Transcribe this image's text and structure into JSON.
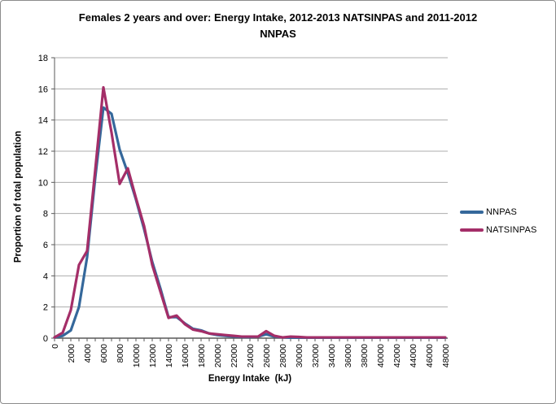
{
  "title": {
    "line1": "Females 2 years and over: Energy Intake, 2012-2013 NATSINPAS and 2011-2012",
    "line2": "NNPAS"
  },
  "colors": {
    "nnpas_line": "#35689B",
    "natsinpas_line": "#A42E68",
    "gridline": "#ACACAC",
    "axis_line": "#595959",
    "text": "#000000"
  },
  "legend": {
    "items": [
      {
        "label": "NNPAS",
        "color": "#35689B"
      },
      {
        "label": "NATSINPAS",
        "color": "#A42E68"
      }
    ]
  },
  "chart_data": {
    "type": "line",
    "title": "Females 2 years and over: Energy Intake, 2012-2013 NATSINPAS and 2011-2012 NNPAS",
    "xlabel": "Energy Intake  (kJ)",
    "ylabel": "Proportion of total population",
    "xlim": [
      0,
      48000
    ],
    "ylim": [
      0,
      18
    ],
    "grid": "horizontal",
    "legend_position": "right",
    "y_ticks": [
      0,
      2,
      4,
      6,
      8,
      10,
      12,
      14,
      16,
      18
    ],
    "x_tick_interval": 1000,
    "x_label_interval": 2000,
    "x_tick_labels": [
      "0",
      "2000",
      "4000",
      "6000",
      "8000",
      "10000",
      "12000",
      "14000",
      "16000",
      "18000",
      "20000",
      "22000",
      "24000",
      "26000",
      "28000",
      "30000",
      "32000",
      "34000",
      "36000",
      "38000",
      "40000",
      "42000",
      "44000",
      "46000",
      "48000"
    ],
    "x": [
      0,
      1000,
      2000,
      3000,
      4000,
      5000,
      6000,
      7000,
      8000,
      9000,
      10000,
      11000,
      12000,
      13000,
      14000,
      15000,
      16000,
      17000,
      18000,
      19000,
      20000,
      21000,
      22000,
      23000,
      24000,
      25000,
      26000,
      27000,
      28000,
      29000,
      30000,
      31000,
      32000,
      33000,
      34000,
      35000,
      36000,
      37000,
      38000,
      39000,
      40000,
      41000,
      42000,
      43000,
      44000,
      45000,
      46000,
      47000,
      48000
    ],
    "series": [
      {
        "name": "NNPAS",
        "color": "#35689B",
        "values": [
          0.05,
          0.15,
          0.5,
          2.0,
          5.2,
          10.3,
          14.8,
          14.4,
          12.1,
          10.6,
          8.9,
          7.0,
          4.9,
          3.2,
          1.35,
          1.35,
          0.95,
          0.6,
          0.5,
          0.3,
          0.2,
          0.15,
          0.1,
          0.08,
          0.07,
          0.1,
          0.25,
          0.1,
          0.05,
          0.03,
          0.03,
          0.03,
          0.03,
          0.03,
          0.03,
          0.03,
          0.03,
          0.03,
          0.03,
          0.03,
          0.03,
          0.03,
          0.03,
          0.03,
          0.03,
          0.03,
          0.03,
          0.03,
          0.03
        ]
      },
      {
        "name": "NATSINPAS",
        "color": "#A42E68",
        "values": [
          0.05,
          0.35,
          1.8,
          4.7,
          5.6,
          10.8,
          16.1,
          13.2,
          9.9,
          10.9,
          9.0,
          7.2,
          4.7,
          3.0,
          1.3,
          1.45,
          0.9,
          0.55,
          0.45,
          0.3,
          0.25,
          0.2,
          0.15,
          0.1,
          0.1,
          0.1,
          0.45,
          0.15,
          0.05,
          0.1,
          0.08,
          0.05,
          0.05,
          0.05,
          0.05,
          0.05,
          0.05,
          0.05,
          0.05,
          0.05,
          0.05,
          0.05,
          0.05,
          0.05,
          0.05,
          0.05,
          0.05,
          0.05,
          0.05
        ]
      }
    ]
  }
}
